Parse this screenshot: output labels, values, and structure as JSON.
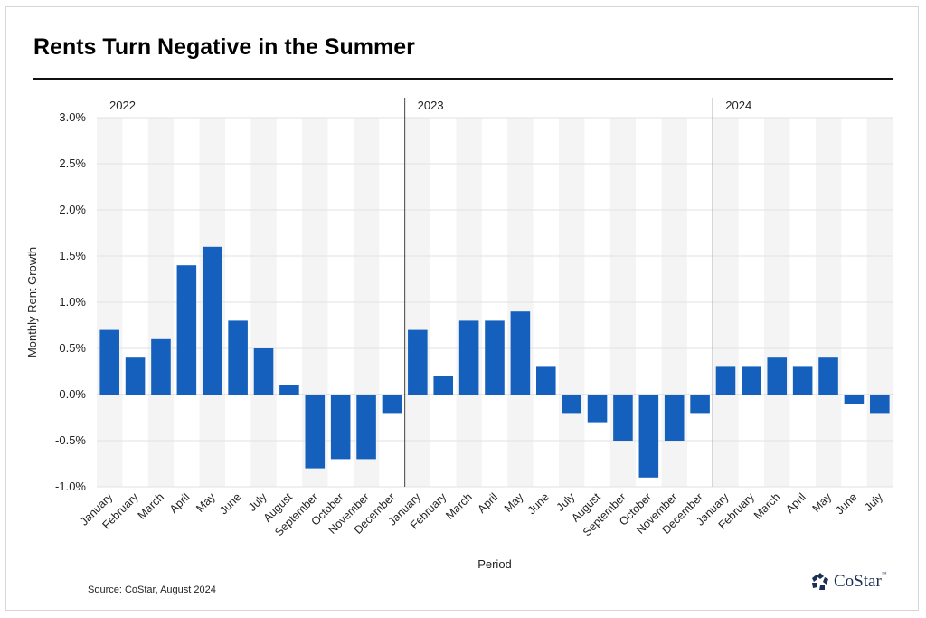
{
  "chart_data": {
    "type": "bar",
    "title": "Rents Turn Negative in the Summer",
    "xlabel": "Period",
    "ylabel": "Monthly Rent Growth",
    "ylim": [
      -1.0,
      3.0
    ],
    "yticks": [
      "-1.0%",
      "-0.5%",
      "0.0%",
      "0.5%",
      "1.0%",
      "1.5%",
      "2.0%",
      "2.5%",
      "3.0%"
    ],
    "grid": true,
    "groups": [
      {
        "year": "2022",
        "categories": [
          "January",
          "February",
          "March",
          "April",
          "May",
          "June",
          "July",
          "August",
          "September",
          "October",
          "November",
          "December"
        ],
        "values": [
          0.7,
          0.4,
          0.6,
          1.4,
          1.6,
          0.8,
          0.5,
          0.1,
          -0.8,
          -0.7,
          -0.7,
          -0.2
        ]
      },
      {
        "year": "2023",
        "categories": [
          "January",
          "February",
          "March",
          "April",
          "May",
          "June",
          "July",
          "August",
          "September",
          "October",
          "November",
          "December"
        ],
        "values": [
          0.7,
          0.2,
          0.8,
          0.8,
          0.9,
          0.3,
          -0.2,
          -0.3,
          -0.5,
          -0.9,
          -0.5,
          -0.2
        ]
      },
      {
        "year": "2024",
        "categories": [
          "January",
          "February",
          "March",
          "April",
          "May",
          "June",
          "July"
        ],
        "values": [
          0.3,
          0.3,
          0.4,
          0.3,
          0.4,
          -0.1,
          -0.2
        ]
      }
    ],
    "bar_color": "#1560bd"
  },
  "source": "Source: CoStar, August 2024",
  "logo": {
    "name": "CoStar",
    "tm": "™"
  }
}
